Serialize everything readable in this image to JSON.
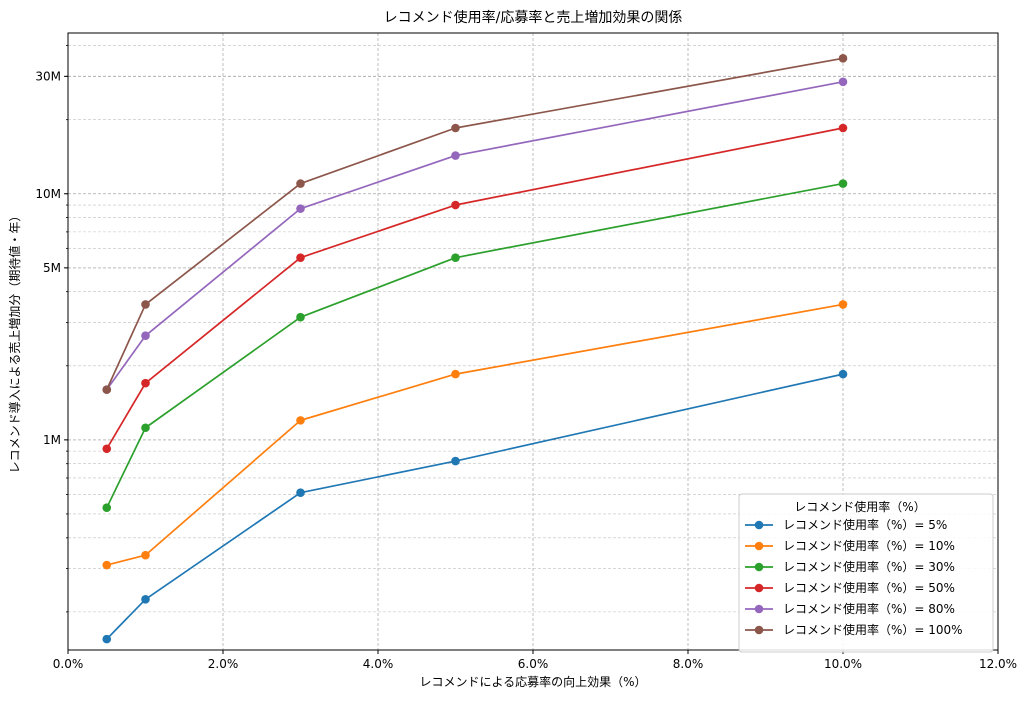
{
  "chart_data": {
    "type": "line",
    "title": "レコメンド使用率/応募率と売上増加効果の関係",
    "xlabel": "レコメンドによる応募率の向上効果（%）",
    "ylabel": "レコメンド導入による売上増加分（期待値・年）",
    "xlim": [
      0,
      12
    ],
    "ylim": [
      140000,
      45000000
    ],
    "yscale": "log",
    "grid": true,
    "x_ticks": [
      {
        "value": 0,
        "label": "0.0%"
      },
      {
        "value": 2,
        "label": "2.0%"
      },
      {
        "value": 4,
        "label": "4.0%"
      },
      {
        "value": 6,
        "label": "6.0%"
      },
      {
        "value": 8,
        "label": "8.0%"
      },
      {
        "value": 10,
        "label": "10.0%"
      },
      {
        "value": 12,
        "label": "12.0%"
      }
    ],
    "y_ticks": [
      {
        "value": 1000000,
        "label": "1M"
      },
      {
        "value": 5000000,
        "label": "5M"
      },
      {
        "value": 10000000,
        "label": "10M"
      },
      {
        "value": 30000000,
        "label": "30M"
      }
    ],
    "legend": {
      "title": "レコメンド使用率（%）",
      "position": "lower-right"
    },
    "x": [
      0.5,
      1,
      3,
      5,
      10
    ],
    "series": [
      {
        "name": "レコメンド使用率（%）= 5%",
        "color": "#1f77b4",
        "values": [
          155000,
          225000,
          610000,
          820000,
          1850000
        ]
      },
      {
        "name": "レコメンド使用率（%）= 10%",
        "color": "#ff7f0e",
        "values": [
          310000,
          340000,
          1200000,
          1850000,
          3550000
        ]
      },
      {
        "name": "レコメンド使用率（%）= 30%",
        "color": "#2ca02c",
        "values": [
          530000,
          1120000,
          3150000,
          5500000,
          11000000
        ]
      },
      {
        "name": "レコメンド使用率（%）= 50%",
        "color": "#d62728",
        "values": [
          920000,
          1700000,
          5500000,
          9000000,
          18500000
        ]
      },
      {
        "name": "レコメンド使用率（%）= 80%",
        "color": "#9467bd",
        "values": [
          1600000,
          2650000,
          8700000,
          14300000,
          28500000
        ]
      },
      {
        "name": "レコメンド使用率（%）= 100%",
        "color": "#8c564b",
        "values": [
          1600000,
          3550000,
          11000000,
          18500000,
          35500000
        ]
      }
    ]
  }
}
